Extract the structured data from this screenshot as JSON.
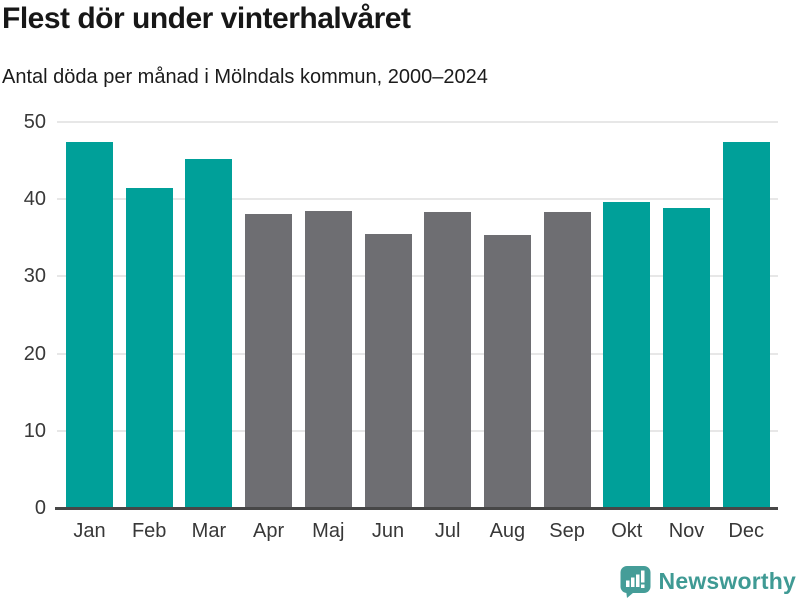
{
  "header": {
    "title": "Flest dör under vinterhalvåret",
    "subtitle": "Antal döda per månad i Mölndals kommun, 2000–2024"
  },
  "chart_data": {
    "type": "bar",
    "title": "Flest dör under vinterhalvåret",
    "subtitle": "Antal döda per månad i Mölndals kommun, 2000–2024",
    "categories": [
      "Jan",
      "Feb",
      "Mar",
      "Apr",
      "Maj",
      "Jun",
      "Jul",
      "Aug",
      "Sep",
      "Okt",
      "Nov",
      "Dec"
    ],
    "values": [
      47.4,
      41.4,
      45.2,
      38.1,
      38.5,
      35.5,
      38.4,
      35.4,
      38.4,
      39.7,
      38.9,
      47.4
    ],
    "bar_season": [
      "winter",
      "winter",
      "winter",
      "summer",
      "summer",
      "summer",
      "summer",
      "summer",
      "summer",
      "winter",
      "winter",
      "winter"
    ],
    "colors": {
      "winter": "#00a099",
      "summer": "#6e6e72"
    },
    "xlabel": "",
    "ylabel": "",
    "ylim": [
      0,
      50
    ],
    "yticks": [
      0,
      10,
      20,
      30,
      40,
      50
    ],
    "grid": "horizontal",
    "legend": "none",
    "gridline_color": "#e7e7e7",
    "axis_line_color": "#474747"
  },
  "branding": {
    "logo_text": "Newsworthy",
    "logo_color": "#3f9a94",
    "logo_badge_color": "#459d98",
    "logo_icon": "newsworthy-bar-chart-badge"
  }
}
